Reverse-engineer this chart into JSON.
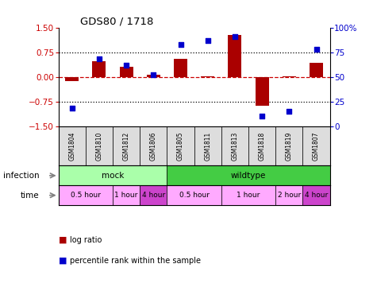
{
  "title": "GDS80 / 1718",
  "samples": [
    "GSM1804",
    "GSM1810",
    "GSM1812",
    "GSM1806",
    "GSM1805",
    "GSM1811",
    "GSM1813",
    "GSM1818",
    "GSM1819",
    "GSM1807"
  ],
  "log_ratio": [
    -0.12,
    0.48,
    0.3,
    0.07,
    0.55,
    0.02,
    1.28,
    -0.88,
    0.02,
    0.42
  ],
  "percentile": [
    18,
    68,
    62,
    52,
    83,
    87,
    91,
    10,
    15,
    78
  ],
  "ylim_left": [
    -1.5,
    1.5
  ],
  "yticks_left": [
    -1.5,
    -0.75,
    0,
    0.75,
    1.5
  ],
  "yticks_right": [
    0,
    25,
    50,
    75,
    100
  ],
  "bar_color": "#aa0000",
  "dot_color": "#0000cc",
  "hline_color": "#cc0000",
  "grid_color": "black",
  "infection_groups": [
    {
      "label": "mock",
      "start": 0,
      "end": 4,
      "color": "#aaffaa"
    },
    {
      "label": "wildtype",
      "start": 4,
      "end": 10,
      "color": "#44cc44"
    }
  ],
  "time_groups": [
    {
      "label": "0.5 hour",
      "start": 0,
      "end": 2,
      "color": "#ffaaff"
    },
    {
      "label": "1 hour",
      "start": 2,
      "end": 3,
      "color": "#ffaaff"
    },
    {
      "label": "4 hour",
      "start": 3,
      "end": 4,
      "color": "#cc44cc"
    },
    {
      "label": "0.5 hour",
      "start": 4,
      "end": 6,
      "color": "#ffaaff"
    },
    {
      "label": "1 hour",
      "start": 6,
      "end": 8,
      "color": "#ffaaff"
    },
    {
      "label": "2 hour",
      "start": 8,
      "end": 9,
      "color": "#ffaaff"
    },
    {
      "label": "4 hour",
      "start": 9,
      "end": 10,
      "color": "#cc44cc"
    }
  ],
  "label_infection": "infection",
  "label_time": "time",
  "legend_bar": "log ratio",
  "legend_dot": "percentile rank within the sample",
  "sample_box_color": "#dddddd",
  "right_axis_color": "#0000cc",
  "left_axis_color": "#cc0000"
}
